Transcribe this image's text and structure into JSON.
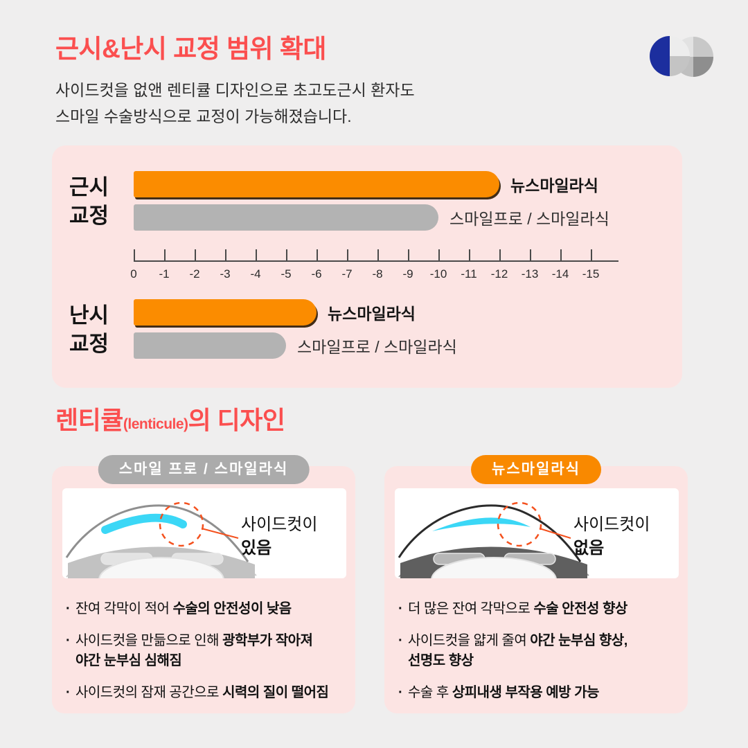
{
  "page": {
    "title": "근시&난시 교정 범위 확대",
    "subtitle_line1": "사이드컷을 없앤 렌티큘 디자인으로 초고도근시 환자도",
    "subtitle_line2": "스마일 수술방식으로 교정이 가능해졌습니다.",
    "section_title_main": "렌티큘",
    "section_title_paren": "(lenticule)",
    "section_title_tail": "의 디자인"
  },
  "colors": {
    "accent_red": "#FB4F4F",
    "accent_orange": "#FB8C00",
    "bar_gray": "#B3B3B3",
    "panel_pink": "#FCE4E3",
    "logo_blue": "#1C2E9E",
    "callout_orange": "#F4511E",
    "lenticule_cyan": "#3BD7F6"
  },
  "chart_data": {
    "type": "bar",
    "orientation": "horizontal",
    "title": "근시&난시 교정 범위 확대",
    "axis": {
      "min": 0,
      "max": -15,
      "step": -1,
      "tick_labels": [
        "0",
        "-1",
        "-2",
        "-3",
        "-4",
        "-5",
        "-6",
        "-7",
        "-8",
        "-9",
        "-10",
        "-11",
        "-12",
        "-13",
        "-14",
        "-15"
      ]
    },
    "groups": [
      {
        "category": "근시 교정",
        "category_lines": [
          "근시",
          "교정"
        ],
        "bars": [
          {
            "name": "뉴스마일라식",
            "value": -12,
            "color": "#FB8C00",
            "emphasis": true
          },
          {
            "name": "스마일프로 / 스마일라식",
            "value": -10,
            "color": "#B3B3B3",
            "emphasis": false
          }
        ]
      },
      {
        "category": "난시 교정",
        "category_lines": [
          "난시",
          "교정"
        ],
        "bars": [
          {
            "name": "뉴스마일라식",
            "value": -6,
            "color": "#FB8C00",
            "emphasis": true
          },
          {
            "name": "스마일프로 / 스마일라식",
            "value": -5,
            "color": "#B3B3B3",
            "emphasis": false
          }
        ]
      }
    ]
  },
  "cards": [
    {
      "pill": "스마일 프로 / 스마일라식",
      "callout": {
        "line1": "사이드컷이",
        "line2": "있음"
      },
      "bullets": [
        [
          {
            "t": "잔여 각막이 적어 "
          },
          {
            "t": "수술의 안전성이 낮음",
            "b": true
          }
        ],
        [
          {
            "t": "사이드컷을 만듦으로 인해 "
          },
          {
            "t": "광학부가 작아져",
            "b": true
          },
          {
            "t": "야간 눈부심 심해짐",
            "b": true,
            "br": true
          }
        ],
        [
          {
            "t": "사이드컷의 잠재 공간으로 "
          },
          {
            "t": "시력의 질이 떨어짐",
            "b": true
          }
        ]
      ]
    },
    {
      "pill": "뉴스마일라식",
      "callout": {
        "line1": "사이드컷이",
        "line2": "없음"
      },
      "bullets": [
        [
          {
            "t": "더 많은 잔여 각막으로 "
          },
          {
            "t": "수술 안전성 향상",
            "b": true
          }
        ],
        [
          {
            "t": "사이드컷을 얇게 줄여 "
          },
          {
            "t": "야간 눈부심 향상,",
            "b": true
          },
          {
            "t": "선명도 향상",
            "b": true,
            "br": true
          }
        ],
        [
          {
            "t": "수술 후 "
          },
          {
            "t": "상피내생 부작용 예방 가능",
            "b": true
          }
        ]
      ]
    }
  ]
}
